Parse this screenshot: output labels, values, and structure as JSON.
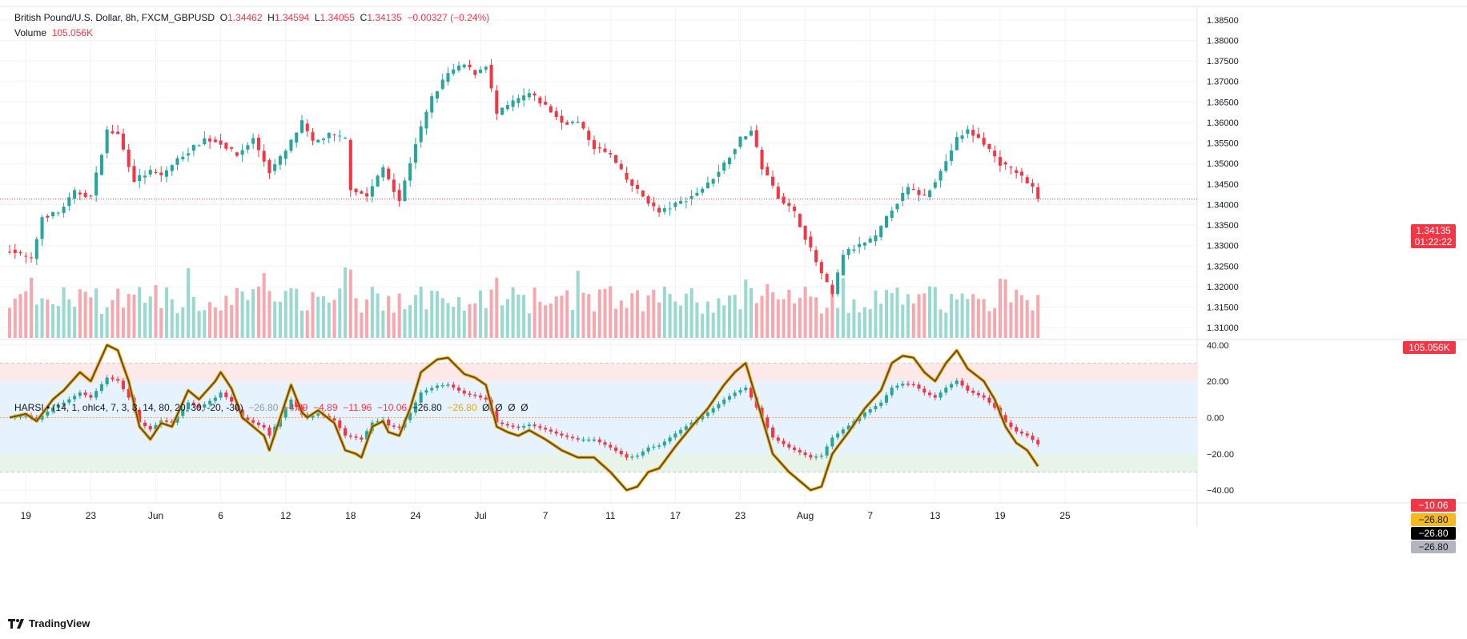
{
  "legend": {
    "symbol": "British Pound/U.S. Dollar, 8h, FXCM_GBPUSD",
    "o_label": "O",
    "o": "1.34462",
    "h_label": "H",
    "h": "1.34594",
    "l_label": "L",
    "l": "1.34055",
    "c_label": "C",
    "c": "1.34135",
    "change": "−0.00327 (−0.24%)",
    "volume_label": "Volume",
    "volume": "105.056K"
  },
  "harsi_legend": {
    "name": "HARSI • (14, 1, ohlc4, 7, 3, 3, 14, 80, 20, 30, -20, -30)",
    "values": [
      "−26.80",
      "−4.89",
      "−4.89",
      "−11.96",
      "−10.06",
      "−26.80",
      "−26.80",
      "Ø",
      "Ø",
      "Ø",
      "Ø"
    ]
  },
  "price_labels": {
    "last": "1.34135",
    "countdown": "01:22:22",
    "volume": "105.056K"
  },
  "harsi_labels": {
    "a": "−10.06",
    "b": "−26.80",
    "c": "−26.80",
    "d": "−26.80"
  },
  "brand": "TradingView",
  "colors": {
    "up": "#26a69a",
    "down": "#f23645",
    "vol_up": "#9ad9d0",
    "vol_down": "#f7a7ae",
    "rsi_line": "#5d4a16"
  },
  "chart_data": [
    {
      "type": "candlestick",
      "title": "British Pound/U.S. Dollar, 8h, FXCM_GBPUSD",
      "yticks": [
        "1.38500",
        "1.38000",
        "1.37500",
        "1.37000",
        "1.36500",
        "1.36000",
        "1.35500",
        "1.35000",
        "1.34500",
        "1.34000",
        "1.33500",
        "1.33000",
        "1.32500",
        "1.32000",
        "1.31500",
        "1.31000"
      ],
      "ylim": [
        1.3075,
        1.3875
      ],
      "xticks": [
        {
          "label": "19",
          "x": 3
        },
        {
          "label": "23",
          "x": 15
        },
        {
          "label": "Jun",
          "x": 27
        },
        {
          "label": "6",
          "x": 39
        },
        {
          "label": "12",
          "x": 51
        },
        {
          "label": "18",
          "x": 63
        },
        {
          "label": "24",
          "x": 75
        },
        {
          "label": "Jul",
          "x": 87
        },
        {
          "label": "7",
          "x": 99
        },
        {
          "label": "11",
          "x": 111
        },
        {
          "label": "17",
          "x": 123
        },
        {
          "label": "23",
          "x": 135
        },
        {
          "label": "Aug",
          "x": 147
        },
        {
          "label": "7",
          "x": 159
        },
        {
          "label": "13",
          "x": 171
        },
        {
          "label": "19",
          "x": 183
        },
        {
          "label": "25",
          "x": 195
        }
      ],
      "close_anchors": [
        [
          0,
          1.329
        ],
        [
          4,
          1.3265
        ],
        [
          6,
          1.337
        ],
        [
          9,
          1.338
        ],
        [
          12,
          1.343
        ],
        [
          15,
          1.342
        ],
        [
          18,
          1.358
        ],
        [
          20,
          1.357
        ],
        [
          23,
          1.346
        ],
        [
          26,
          1.348
        ],
        [
          28,
          1.347
        ],
        [
          31,
          1.351
        ],
        [
          33,
          1.353
        ],
        [
          36,
          1.356
        ],
        [
          39,
          1.355
        ],
        [
          42,
          1.352
        ],
        [
          45,
          1.356
        ],
        [
          48,
          1.348
        ],
        [
          51,
          1.353
        ],
        [
          54,
          1.36
        ],
        [
          56,
          1.355
        ],
        [
          59,
          1.357
        ],
        [
          62,
          1.356
        ],
        [
          63,
          1.344
        ],
        [
          66,
          1.342
        ],
        [
          69,
          1.349
        ],
        [
          72,
          1.341
        ],
        [
          75,
          1.355
        ],
        [
          78,
          1.366
        ],
        [
          81,
          1.372
        ],
        [
          84,
          1.374
        ],
        [
          86,
          1.372
        ],
        [
          88,
          1.374
        ],
        [
          90,
          1.362
        ],
        [
          93,
          1.365
        ],
        [
          96,
          1.367
        ],
        [
          99,
          1.364
        ],
        [
          102,
          1.36
        ],
        [
          105,
          1.36
        ],
        [
          108,
          1.354
        ],
        [
          111,
          1.352
        ],
        [
          114,
          1.346
        ],
        [
          117,
          1.342
        ],
        [
          120,
          1.338
        ],
        [
          123,
          1.34
        ],
        [
          126,
          1.342
        ],
        [
          129,
          1.345
        ],
        [
          132,
          1.35
        ],
        [
          135,
          1.356
        ],
        [
          137,
          1.358
        ],
        [
          139,
          1.349
        ],
        [
          142,
          1.342
        ],
        [
          145,
          1.338
        ],
        [
          147,
          1.332
        ],
        [
          150,
          1.323
        ],
        [
          152,
          1.318
        ],
        [
          154,
          1.328
        ],
        [
          157,
          1.33
        ],
        [
          160,
          1.332
        ],
        [
          163,
          1.339
        ],
        [
          166,
          1.344
        ],
        [
          169,
          1.342
        ],
        [
          172,
          1.348
        ],
        [
          175,
          1.356
        ],
        [
          177,
          1.358
        ],
        [
          180,
          1.355
        ],
        [
          183,
          1.35
        ],
        [
          186,
          1.348
        ],
        [
          189,
          1.344
        ],
        [
          190,
          1.3414
        ]
      ],
      "last_close": 1.34135,
      "volume_last": "105.056K"
    },
    {
      "type": "line",
      "title": "HARSI • (14, 1, ohlc4, 7, 3, 3, 14, 80, 20, 30, -20, -30)",
      "yticks": [
        "40.00",
        "20.00",
        "0.00",
        "−20.00",
        "−40.00"
      ],
      "ylim": [
        -47,
        43
      ],
      "bands": {
        "ob_extreme": 30,
        "ob": 20,
        "os": -20,
        "os_extreme": -30
      },
      "rsi_anchors": [
        [
          0,
          0
        ],
        [
          3,
          2
        ],
        [
          5,
          -2
        ],
        [
          8,
          10
        ],
        [
          10,
          15
        ],
        [
          13,
          25
        ],
        [
          15,
          20
        ],
        [
          18,
          40
        ],
        [
          20,
          37
        ],
        [
          22,
          20
        ],
        [
          24,
          -5
        ],
        [
          26,
          -12
        ],
        [
          28,
          -3
        ],
        [
          30,
          -5
        ],
        [
          33,
          15
        ],
        [
          35,
          10
        ],
        [
          38,
          20
        ],
        [
          39,
          25
        ],
        [
          41,
          16
        ],
        [
          43,
          0
        ],
        [
          45,
          -5
        ],
        [
          47,
          -10
        ],
        [
          48,
          -18
        ],
        [
          50,
          0
        ],
        [
          52,
          18
        ],
        [
          54,
          3
        ],
        [
          55,
          0
        ],
        [
          57,
          4
        ],
        [
          60,
          -3
        ],
        [
          62,
          -18
        ],
        [
          64,
          -20
        ],
        [
          65,
          -22
        ],
        [
          67,
          -5
        ],
        [
          69,
          -2
        ],
        [
          70,
          -8
        ],
        [
          72,
          -10
        ],
        [
          74,
          5
        ],
        [
          76,
          25
        ],
        [
          79,
          32
        ],
        [
          81,
          33
        ],
        [
          84,
          24
        ],
        [
          86,
          22
        ],
        [
          88,
          18
        ],
        [
          90,
          -5
        ],
        [
          92,
          -8
        ],
        [
          94,
          -10
        ],
        [
          96,
          -7
        ],
        [
          99,
          -12
        ],
        [
          102,
          -18
        ],
        [
          105,
          -22
        ],
        [
          108,
          -22
        ],
        [
          111,
          -30
        ],
        [
          114,
          -40
        ],
        [
          116,
          -38
        ],
        [
          118,
          -30
        ],
        [
          120,
          -28
        ],
        [
          123,
          -16
        ],
        [
          126,
          -5
        ],
        [
          129,
          5
        ],
        [
          132,
          18
        ],
        [
          134,
          25
        ],
        [
          136,
          30
        ],
        [
          138,
          10
        ],
        [
          141,
          -20
        ],
        [
          144,
          -30
        ],
        [
          146,
          -35
        ],
        [
          148,
          -40
        ],
        [
          150,
          -38
        ],
        [
          152,
          -20
        ],
        [
          155,
          -8
        ],
        [
          158,
          5
        ],
        [
          161,
          15
        ],
        [
          163,
          30
        ],
        [
          165,
          34
        ],
        [
          167,
          33
        ],
        [
          169,
          25
        ],
        [
          171,
          20
        ],
        [
          173,
          30
        ],
        [
          175,
          37
        ],
        [
          177,
          27
        ],
        [
          180,
          20
        ],
        [
          182,
          10
        ],
        [
          184,
          -5
        ],
        [
          186,
          -14
        ],
        [
          188,
          -18
        ],
        [
          190,
          -26.8
        ]
      ],
      "last_value": -26.8
    }
  ]
}
